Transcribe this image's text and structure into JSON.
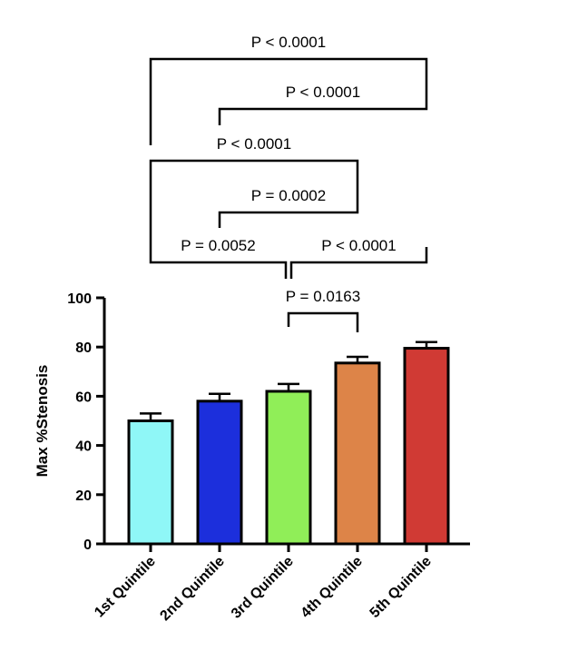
{
  "chart_data": {
    "type": "bar",
    "ylabel": "Max %Stenosis",
    "xlabel": "",
    "ylim": [
      0,
      100
    ],
    "yticks": [
      0,
      20,
      40,
      60,
      80,
      100
    ],
    "categories": [
      "1st Quintile",
      "2nd Quintile",
      "3rd Quintile",
      "4th Quintile",
      "5th Quintile"
    ],
    "values": [
      50,
      58,
      62,
      73.5,
      79.5
    ],
    "error_upper": [
      53,
      61,
      65,
      76,
      82
    ],
    "colors": [
      "#8ff7f7",
      "#1c2fdc",
      "#90ee58",
      "#dd8448",
      "#d03a34"
    ],
    "comparisons": [
      {
        "from": 0,
        "to": 4,
        "label": "P < 0.0001"
      },
      {
        "from": 1,
        "to": 4,
        "label": "P < 0.0001"
      },
      {
        "from": 0,
        "to": 3,
        "label": "P < 0.0001"
      },
      {
        "from": 1,
        "to": 3,
        "label": "P = 0.0002"
      },
      {
        "from": 0,
        "to": 2,
        "label": "P = 0.0052"
      },
      {
        "from": 2,
        "to": 4,
        "label": "P < 0.0001"
      },
      {
        "from": 2,
        "to": 3,
        "label": "P = 0.0163"
      }
    ]
  }
}
